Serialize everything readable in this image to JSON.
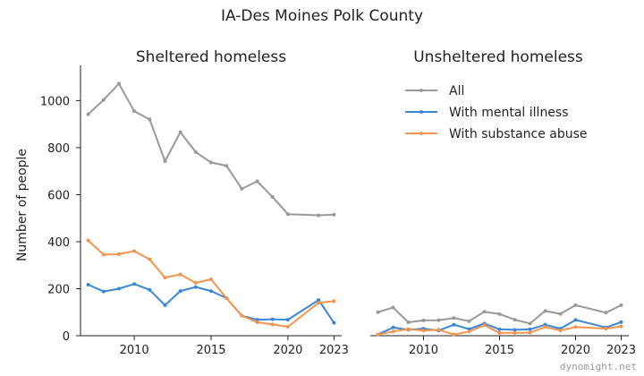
{
  "title": "IA-Des Moines Polk County",
  "watermark": "dynomight.net",
  "colors": {
    "all": "#999999",
    "mental": "#3a87d8",
    "substance": "#f4944e"
  },
  "chart_data": [
    {
      "type": "line",
      "title": "Sheltered homeless",
      "ylabel": "Number of people",
      "xlim": [
        2006.5,
        2023.5
      ],
      "ylim": [
        0,
        1150
      ],
      "xticks": [
        2010,
        2015,
        2020,
        2023
      ],
      "yticks": [
        0,
        200,
        400,
        600,
        800,
        1000
      ],
      "x": [
        2007,
        2008,
        2009,
        2010,
        2011,
        2012,
        2013,
        2014,
        2015,
        2016,
        2017,
        2018,
        2019,
        2020,
        2022,
        2023
      ],
      "series": [
        {
          "name": "All",
          "color_key": "all",
          "values": [
            942,
            1003,
            1072,
            955,
            920,
            742,
            866,
            781,
            737,
            723,
            625,
            657,
            590,
            517,
            512,
            515
          ]
        },
        {
          "name": "With mental illness",
          "color_key": "mental",
          "values": [
            217,
            188,
            200,
            220,
            195,
            130,
            190,
            207,
            190,
            160,
            85,
            68,
            70,
            68,
            152,
            55
          ]
        },
        {
          "name": "With substance abuse",
          "color_key": "substance",
          "values": [
            405,
            345,
            347,
            360,
            325,
            247,
            261,
            225,
            240,
            160,
            85,
            57,
            48,
            38,
            140,
            147
          ]
        }
      ]
    },
    {
      "type": "line",
      "title": "Unsheltered homeless",
      "xlim": [
        2006.5,
        2023.5
      ],
      "ylim": [
        0,
        1150
      ],
      "xticks": [
        2010,
        2015,
        2020,
        2023
      ],
      "legend": "top-left",
      "x": [
        2007,
        2008,
        2009,
        2010,
        2011,
        2012,
        2013,
        2014,
        2015,
        2016,
        2017,
        2018,
        2019,
        2020,
        2022,
        2023
      ],
      "series": [
        {
          "name": "All",
          "color_key": "all",
          "values": [
            100,
            120,
            57,
            65,
            66,
            75,
            62,
            102,
            92,
            68,
            52,
            105,
            93,
            130,
            98,
            130
          ]
        },
        {
          "name": "With mental illness",
          "color_key": "mental",
          "values": [
            5,
            35,
            25,
            30,
            22,
            47,
            28,
            52,
            27,
            25,
            27,
            47,
            30,
            67,
            35,
            58
          ]
        },
        {
          "name": "With substance abuse",
          "color_key": "substance",
          "values": [
            5,
            18,
            28,
            22,
            25,
            5,
            18,
            45,
            12,
            12,
            13,
            37,
            22,
            37,
            30,
            40
          ]
        }
      ]
    }
  ]
}
